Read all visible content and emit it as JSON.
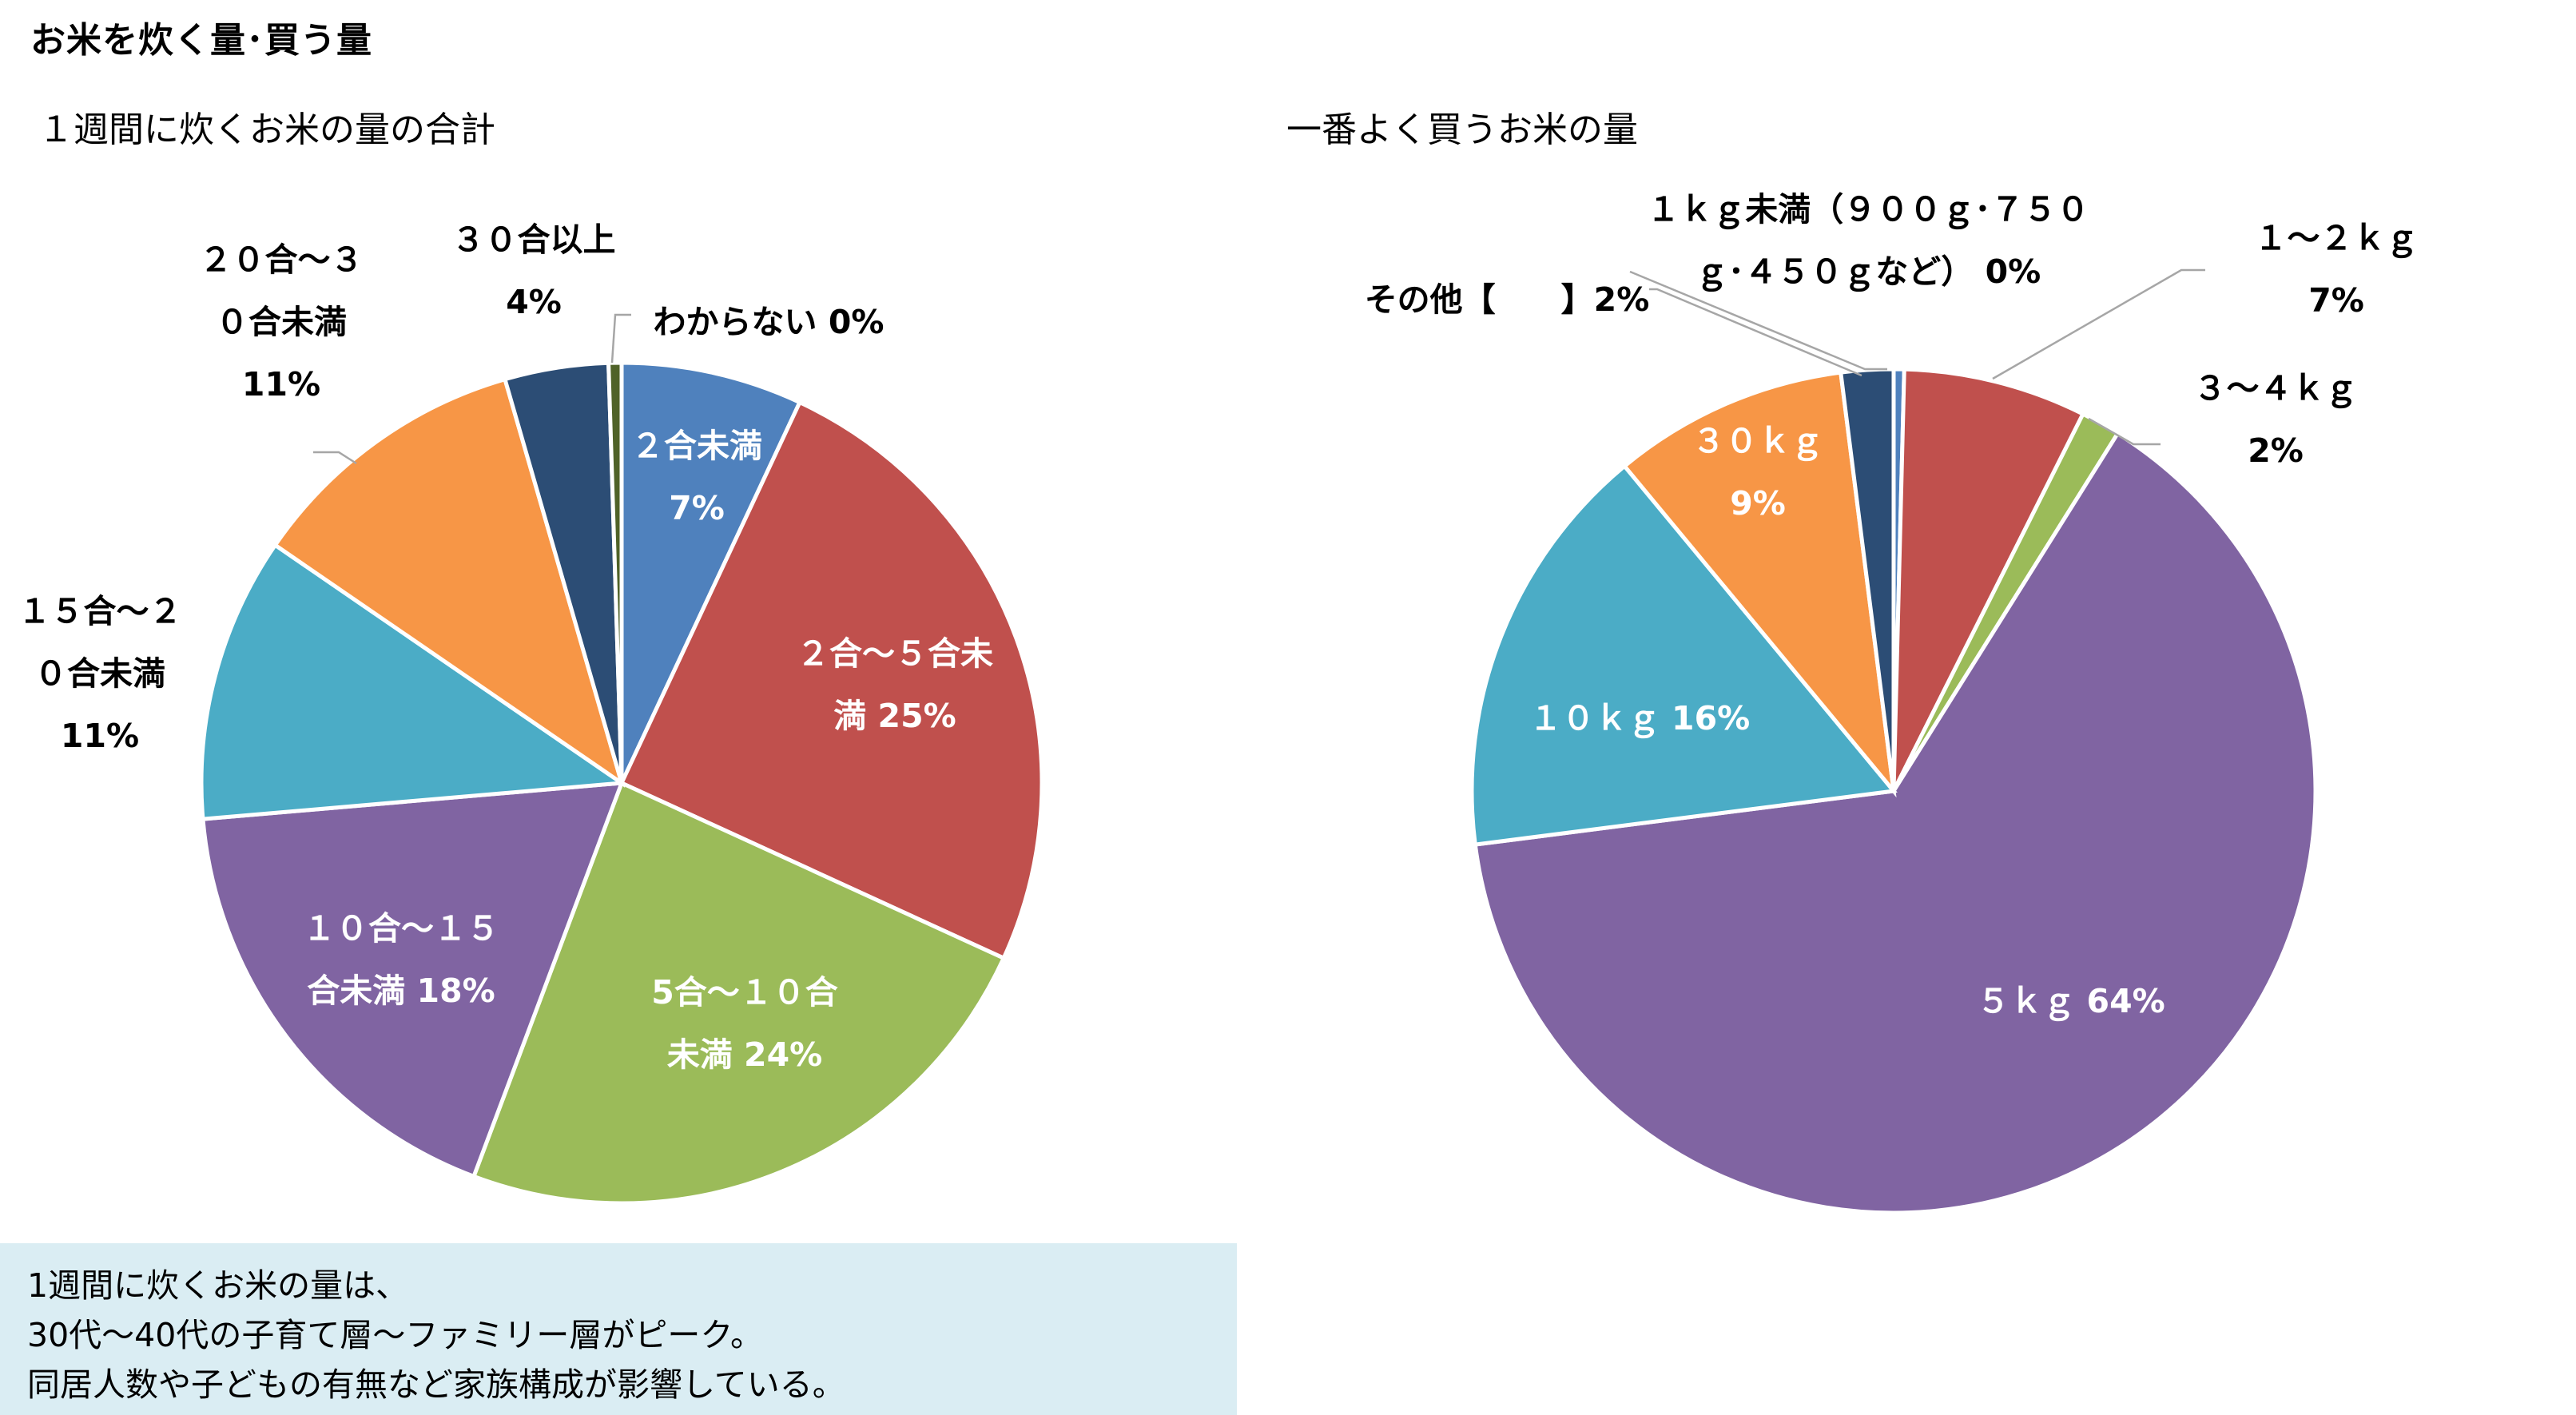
{
  "page_title": "お米を炊く量･買う量",
  "note": {
    "lines": [
      "1週間に炊くお米の量は、",
      "30代～40代の子育て層～ファミリー層がピーク。",
      "同居人数や子どもの有無など家族構成が影響している。"
    ],
    "background": "#daedf3"
  },
  "chart_data": [
    {
      "type": "pie",
      "title": "１週間に炊くお米の量の合計",
      "slices": [
        {
          "label": "２合未満 7%",
          "value": 7,
          "color": "#4f81bd",
          "label_lines": [
            "２合未満",
            "7%"
          ],
          "label_color": "#ffffff"
        },
        {
          "label": "２合～５合未満 25%",
          "value": 25,
          "color": "#c0504d",
          "label_lines": [
            "２合～５合未",
            "満 25%"
          ],
          "label_color": "#ffffff"
        },
        {
          "label": "５合～１０合未満 24%",
          "value": 24,
          "color": "#9bbb59",
          "label_lines": [
            "5合～１０合",
            "未満 24%"
          ],
          "label_color": "#ffffff"
        },
        {
          "label": "１０合～１５合未満 18%",
          "value": 18,
          "color": "#8064a2",
          "label_lines": [
            "１０合～１５",
            "合未満 18%"
          ],
          "label_color": "#ffffff"
        },
        {
          "label": "１５合～２０合未満 11%",
          "value": 11,
          "color": "#4bacc6",
          "label_lines": [
            "１５合～２",
            "０合未満",
            "11%"
          ],
          "label_color": "#000000"
        },
        {
          "label": "２０合～３０合未満 11%",
          "value": 11,
          "color": "#f79646",
          "label_lines": [
            "２０合～３",
            "０合未満",
            "11%"
          ],
          "label_color": "#000000"
        },
        {
          "label": "３０合以上 4%",
          "value": 4,
          "color": "#2c4d75",
          "label_lines": [
            "３０合以上",
            "4%"
          ],
          "label_color": "#000000"
        },
        {
          "label": "わからない 0%",
          "value": 0.5,
          "color": "#4f6228",
          "label_lines": [
            "わからない 0%"
          ],
          "label_color": "#000000"
        }
      ]
    },
    {
      "type": "pie",
      "title": "一番よく買うお米の量",
      "slices": [
        {
          "label": "１ｋｇ未満（９００ｇ･７５０ｇ･４５０ｇなど） 0%",
          "value": 0.4,
          "color": "#4f81bd",
          "label_lines": [
            "１ｋｇ未満（９００ｇ･７５０",
            "ｇ･４５０ｇなど） 0%"
          ],
          "label_color": "#000000"
        },
        {
          "label": "１～２ｋｇ 7%",
          "value": 7,
          "color": "#c0504d",
          "label_lines": [
            "１～２ｋｇ",
            "7%"
          ],
          "label_color": "#000000"
        },
        {
          "label": "３～４ｋｇ 2%",
          "value": 1.5,
          "color": "#9bbb59",
          "label_lines": [
            "３～４ｋｇ",
            "2%"
          ],
          "label_color": "#000000"
        },
        {
          "label": "５ｋｇ 64%",
          "value": 64,
          "color": "#8064a2",
          "label_lines": [
            "５ｋｇ 64%"
          ],
          "label_color": "#ffffff"
        },
        {
          "label": "１０ｋｇ 16%",
          "value": 16,
          "color": "#4bacc6",
          "label_lines": [
            "１０ｋｇ 16%"
          ],
          "label_color": "#ffffff"
        },
        {
          "label": "３０ｋｇ 9%",
          "value": 9,
          "color": "#f79646",
          "label_lines": [
            "３０ｋｇ",
            "9%"
          ],
          "label_color": "#ffffff"
        },
        {
          "label": "その他【 】2%",
          "value": 2,
          "color": "#2c4d75",
          "label_lines": [
            "その他【　　】2%"
          ],
          "label_color": "#000000"
        }
      ]
    }
  ]
}
